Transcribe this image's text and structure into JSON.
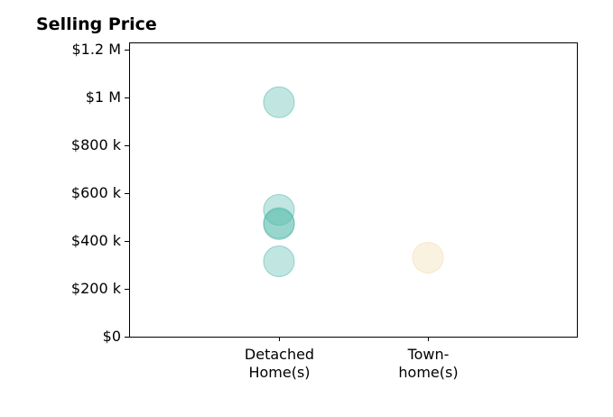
{
  "chart_data": {
    "type": "scatter",
    "title": "Selling Price",
    "xlabel": "",
    "ylabel": "",
    "categories": [
      [
        "Detached",
        "Home(s)"
      ],
      [
        "Town-",
        "home(s)"
      ]
    ],
    "ylim": [
      0,
      1230000
    ],
    "yticks": [
      {
        "value": 0,
        "label": "$0"
      },
      {
        "value": 200000,
        "label": "$200 k"
      },
      {
        "value": 400000,
        "label": "$400 k"
      },
      {
        "value": 600000,
        "label": "$600 k"
      },
      {
        "value": 800000,
        "label": "$800 k"
      },
      {
        "value": 1000000,
        "label": "$1 M"
      },
      {
        "value": 1200000,
        "label": "$1.2 M"
      }
    ],
    "grid": false,
    "legend": "none",
    "series": [
      {
        "category_index": 0,
        "color": "#4DB6A8",
        "values": [
          980000,
          530000,
          475000,
          470000,
          315000
        ]
      },
      {
        "category_index": 1,
        "color": "#F2D9A6",
        "values": [
          330000
        ]
      }
    ]
  }
}
